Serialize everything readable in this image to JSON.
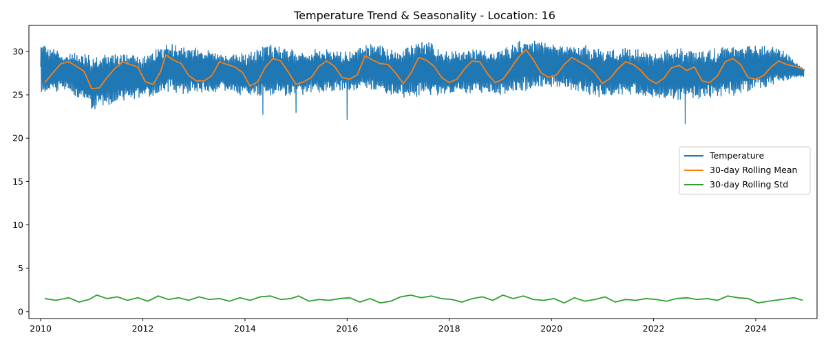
{
  "chart_data": {
    "type": "line",
    "title": "Temperature Trend & Seasonality - Location: 16",
    "xlabel": "",
    "ylabel": "",
    "xlim": [
      2009.77,
      2025.2
    ],
    "ylim": [
      -0.8,
      33.0
    ],
    "x_ticks": [
      2010,
      2012,
      2014,
      2016,
      2018,
      2020,
      2022,
      2024
    ],
    "y_ticks": [
      0,
      5,
      10,
      15,
      20,
      25,
      30
    ],
    "grid": false,
    "legend_position": "center-right",
    "series": [
      {
        "name": "Temperature",
        "color": "#1f77b4",
        "description_points": {
          "x": [
            2010.0,
            2010.5,
            2011.0,
            2011.5,
            2012.0,
            2012.5,
            2013.0,
            2013.5,
            2014.0,
            2014.5,
            2015.0,
            2015.5,
            2016.0,
            2016.5,
            2017.0,
            2017.5,
            2018.0,
            2018.5,
            2019.0,
            2019.5,
            2020.0,
            2020.5,
            2021.0,
            2021.5,
            2022.0,
            2022.5,
            2023.0,
            2023.5,
            2024.0,
            2024.5,
            2024.9
          ],
          "y_low": [
            25.0,
            25.5,
            23.2,
            24.0,
            24.6,
            25.2,
            25.0,
            25.3,
            24.7,
            24.8,
            24.8,
            25.3,
            25.5,
            25.4,
            24.5,
            24.6,
            25.0,
            25.2,
            24.9,
            25.4,
            25.8,
            25.3,
            24.6,
            25.0,
            24.5,
            24.3,
            24.5,
            24.8,
            25.3,
            26.5,
            27.0
          ],
          "y_high": [
            31.0,
            30.0,
            29.8,
            30.0,
            29.5,
            31.0,
            30.5,
            30.0,
            29.8,
            31.0,
            30.2,
            30.4,
            30.0,
            31.0,
            30.2,
            31.4,
            30.0,
            30.5,
            30.3,
            31.6,
            31.0,
            31.0,
            30.3,
            30.5,
            30.0,
            30.5,
            30.0,
            31.0,
            31.0,
            30.4,
            28.2
          ]
        },
        "outliers": [
          {
            "x": 2016.0,
            "y": 22.1
          },
          {
            "x": 2022.62,
            "y": 21.6
          },
          {
            "x": 2014.35,
            "y": 22.7
          },
          {
            "x": 2015.0,
            "y": 22.9
          }
        ]
      },
      {
        "name": "30-day Rolling Mean",
        "color": "#ff7f0e",
        "x": [
          2010.08,
          2010.25,
          2010.4,
          2010.55,
          2010.7,
          2010.85,
          2011.0,
          2011.15,
          2011.3,
          2011.45,
          2011.6,
          2011.75,
          2011.9,
          2012.05,
          2012.2,
          2012.35,
          2012.45,
          2012.6,
          2012.75,
          2012.9,
          2013.05,
          2013.2,
          2013.35,
          2013.5,
          2013.65,
          2013.8,
          2013.95,
          2014.1,
          2014.25,
          2014.4,
          2014.55,
          2014.7,
          2014.85,
          2015.0,
          2015.15,
          2015.3,
          2015.45,
          2015.6,
          2015.75,
          2015.9,
          2016.05,
          2016.2,
          2016.35,
          2016.5,
          2016.65,
          2016.8,
          2016.95,
          2017.1,
          2017.25,
          2017.4,
          2017.55,
          2017.7,
          2017.85,
          2018.0,
          2018.15,
          2018.3,
          2018.45,
          2018.6,
          2018.75,
          2018.9,
          2019.05,
          2019.2,
          2019.35,
          2019.5,
          2019.65,
          2019.8,
          2019.95,
          2020.1,
          2020.25,
          2020.4,
          2020.55,
          2020.7,
          2020.85,
          2021.0,
          2021.15,
          2021.3,
          2021.45,
          2021.6,
          2021.75,
          2021.9,
          2022.05,
          2022.2,
          2022.35,
          2022.5,
          2022.65,
          2022.8,
          2022.95,
          2023.1,
          2023.25,
          2023.4,
          2023.55,
          2023.7,
          2023.85,
          2024.0,
          2024.15,
          2024.3,
          2024.45,
          2024.6,
          2024.75,
          2024.92
        ],
        "y": [
          26.4,
          27.6,
          28.6,
          28.8,
          28.3,
          27.7,
          25.7,
          25.8,
          27.0,
          28.0,
          28.8,
          28.5,
          28.2,
          26.5,
          26.2,
          27.7,
          29.6,
          29.0,
          28.6,
          27.2,
          26.6,
          26.6,
          27.2,
          28.8,
          28.5,
          28.2,
          27.6,
          26.0,
          26.5,
          28.2,
          29.2,
          28.9,
          27.6,
          26.2,
          26.5,
          27.0,
          28.3,
          28.9,
          28.3,
          27.0,
          26.8,
          27.3,
          29.5,
          29.0,
          28.6,
          28.5,
          27.5,
          26.3,
          27.5,
          29.3,
          29.0,
          28.3,
          27.0,
          26.4,
          26.8,
          28.0,
          28.9,
          28.8,
          27.4,
          26.4,
          26.8,
          28.0,
          29.3,
          30.2,
          29.0,
          27.5,
          27.0,
          27.3,
          28.5,
          29.3,
          28.8,
          28.3,
          27.5,
          26.3,
          26.9,
          28.0,
          28.8,
          28.5,
          27.8,
          26.8,
          26.3,
          26.9,
          28.1,
          28.4,
          27.8,
          28.2,
          26.6,
          26.4,
          27.2,
          28.8,
          29.2,
          28.5,
          27.0,
          26.8,
          27.2,
          28.2,
          28.9,
          28.5,
          28.3,
          28.0
        ]
      },
      {
        "name": "30-day Rolling Std",
        "color": "#2ca02c",
        "x": [
          2010.08,
          2010.3,
          2010.55,
          2010.75,
          2010.95,
          2011.1,
          2011.3,
          2011.5,
          2011.7,
          2011.9,
          2012.1,
          2012.3,
          2012.5,
          2012.7,
          2012.9,
          2013.1,
          2013.3,
          2013.5,
          2013.7,
          2013.9,
          2014.1,
          2014.3,
          2014.5,
          2014.7,
          2014.9,
          2015.05,
          2015.25,
          2015.45,
          2015.65,
          2015.85,
          2016.05,
          2016.25,
          2016.45,
          2016.65,
          2016.85,
          2017.05,
          2017.25,
          2017.45,
          2017.65,
          2017.85,
          2018.05,
          2018.25,
          2018.45,
          2018.65,
          2018.85,
          2019.05,
          2019.25,
          2019.45,
          2019.65,
          2019.85,
          2020.05,
          2020.25,
          2020.45,
          2020.65,
          2020.85,
          2021.05,
          2021.25,
          2021.45,
          2021.65,
          2021.85,
          2022.05,
          2022.25,
          2022.45,
          2022.65,
          2022.85,
          2023.05,
          2023.25,
          2023.45,
          2023.65,
          2023.85,
          2024.05,
          2024.25,
          2024.5,
          2024.75,
          2024.92
        ],
        "y": [
          1.5,
          1.3,
          1.6,
          1.1,
          1.4,
          1.9,
          1.5,
          1.7,
          1.3,
          1.6,
          1.2,
          1.8,
          1.4,
          1.6,
          1.3,
          1.7,
          1.4,
          1.5,
          1.2,
          1.6,
          1.3,
          1.7,
          1.8,
          1.4,
          1.5,
          1.8,
          1.2,
          1.4,
          1.3,
          1.5,
          1.6,
          1.1,
          1.5,
          1.0,
          1.2,
          1.7,
          1.9,
          1.6,
          1.8,
          1.5,
          1.4,
          1.1,
          1.5,
          1.7,
          1.3,
          1.9,
          1.5,
          1.8,
          1.4,
          1.3,
          1.5,
          1.0,
          1.6,
          1.2,
          1.4,
          1.7,
          1.1,
          1.4,
          1.3,
          1.5,
          1.4,
          1.2,
          1.5,
          1.6,
          1.4,
          1.5,
          1.3,
          1.8,
          1.6,
          1.5,
          1.0,
          1.2,
          1.4,
          1.6,
          1.3
        ]
      }
    ]
  }
}
